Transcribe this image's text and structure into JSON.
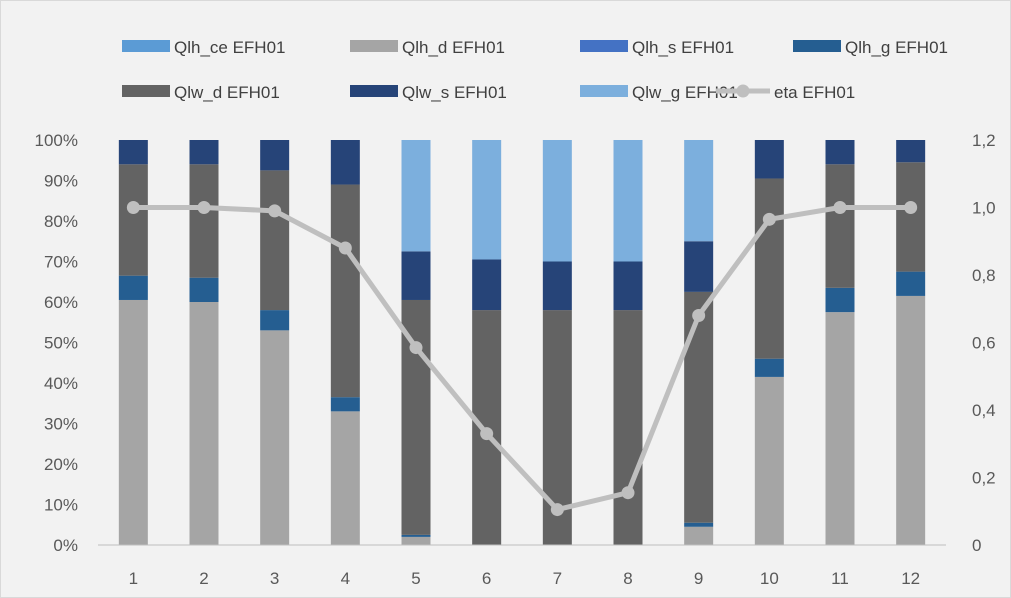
{
  "chart_data": {
    "type": "bar",
    "stacked": true,
    "normalized": true,
    "categories": [
      "1",
      "2",
      "3",
      "4",
      "5",
      "6",
      "7",
      "8",
      "9",
      "10",
      "11",
      "12"
    ],
    "series": [
      {
        "name": "Qlh_ce EFH01",
        "color": "#5b9bd5",
        "values": [
          0,
          0,
          0,
          0,
          0,
          0,
          0,
          0,
          0,
          0,
          0,
          0
        ]
      },
      {
        "name": "Qlh_d EFH01",
        "color": "#a5a5a5",
        "values": [
          60.5,
          60,
          53,
          33,
          2,
          0,
          0,
          0,
          4.5,
          41.5,
          57.5,
          61.5
        ]
      },
      {
        "name": "Qlh_s EFH01",
        "color": "#4472c4",
        "values": [
          0,
          0,
          0,
          0,
          0,
          0,
          0,
          0,
          0,
          0,
          0,
          0
        ]
      },
      {
        "name": "Qlh_g EFH01",
        "color": "#255e91",
        "values": [
          6,
          6,
          5,
          3.5,
          0.5,
          0,
          0,
          0,
          1,
          4.5,
          6,
          6
        ]
      },
      {
        "name": "Qlw_d EFH01",
        "color": "#636363",
        "values": [
          27.5,
          28,
          34.5,
          52.5,
          58,
          58,
          58,
          58,
          57,
          44.5,
          30.5,
          27
        ]
      },
      {
        "name": "Qlw_s EFH01",
        "color": "#264478",
        "values": [
          6,
          6,
          7.5,
          11,
          12,
          12.5,
          12,
          12,
          12.5,
          9.5,
          6,
          5.5
        ]
      },
      {
        "name": "Qlw_g EFH01",
        "color": "#7cafdd",
        "values": [
          0,
          0,
          0,
          0,
          27.5,
          29.5,
          30,
          30,
          25,
          0,
          0,
          0
        ]
      }
    ],
    "line": {
      "name": "eta EFH01",
      "color": "#bfbfbf",
      "axis": "secondary",
      "values": [
        1.0,
        1.0,
        0.99,
        0.88,
        0.585,
        0.33,
        0.105,
        0.155,
        0.68,
        0.965,
        1.0,
        1.0
      ]
    },
    "y_axis": {
      "range": [
        0,
        100
      ],
      "ticks": [
        "0%",
        "10%",
        "20%",
        "30%",
        "40%",
        "50%",
        "60%",
        "70%",
        "80%",
        "90%",
        "100%"
      ]
    },
    "y2_axis": {
      "range": [
        0,
        1.2
      ],
      "ticks": [
        "0",
        "0,2",
        "0,4",
        "0,6",
        "0,8",
        "1,0",
        "1,2"
      ]
    },
    "grid": false,
    "legend_position": "top"
  }
}
